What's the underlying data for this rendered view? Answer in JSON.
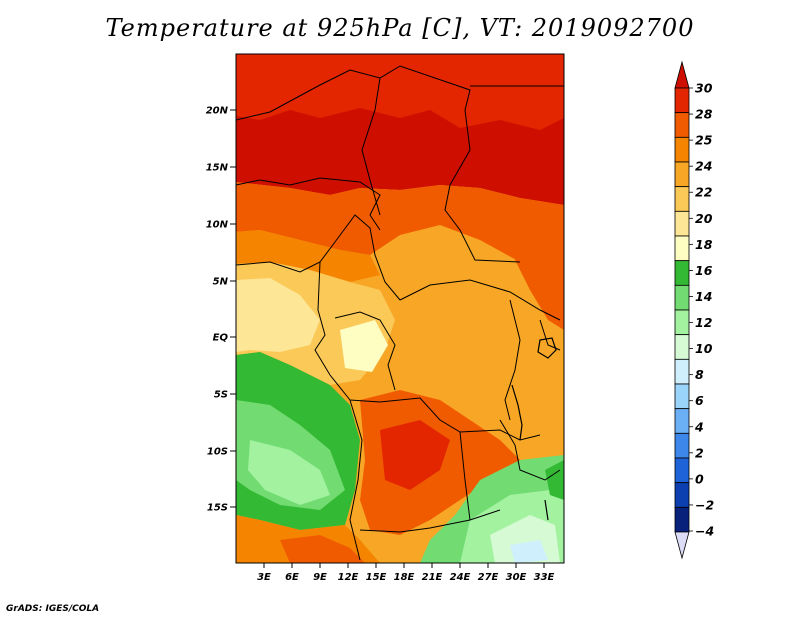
{
  "title": "Temperature at 925hPa [C], VT: 2019092700",
  "credit": "GrADS: IGES/COLA",
  "map": {
    "variable": "Temperature",
    "level": "925hPa",
    "units": "C",
    "valid_time": "2019092700",
    "lat_labels": [
      "20N",
      "15N",
      "10N",
      "5N",
      "EQ",
      "5S",
      "10S",
      "15S"
    ],
    "lon_labels": [
      "3E",
      "6E",
      "9E",
      "12E",
      "15E",
      "18E",
      "21E",
      "24E",
      "27E",
      "30E",
      "33E"
    ]
  },
  "colorbar": {
    "labels": [
      "30",
      "28",
      "25",
      "24",
      "22",
      "20",
      "18",
      "16",
      "14",
      "12",
      "10",
      "8",
      "6",
      "4",
      "2",
      "0",
      "−2",
      "−4"
    ],
    "colors": [
      "#ce0f00",
      "#e32500",
      "#f15b00",
      "#f58500",
      "#f7a725",
      "#fac958",
      "#fde695",
      "#fefdc2",
      "#34b934",
      "#72dc72",
      "#a2f2a0",
      "#d6fad4",
      "#cfeffd",
      "#9bd4fa",
      "#6baff5",
      "#3d87ea",
      "#1f63d9",
      "#0c40b0",
      "#08217a",
      "#dcdcf7"
    ]
  }
}
